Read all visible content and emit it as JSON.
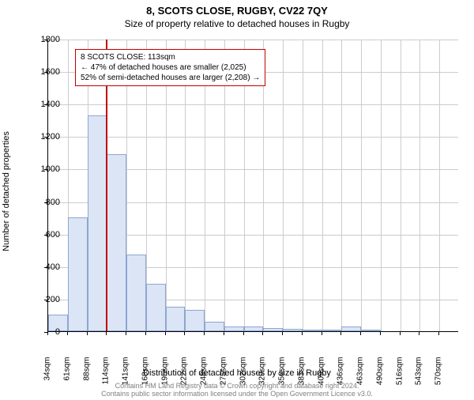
{
  "chart": {
    "type": "histogram",
    "title_main": "8, SCOTS CLOSE, RUGBY, CV22 7QY",
    "title_sub": "Size of property relative to detached houses in Rugby",
    "y_axis_label": "Number of detached properties",
    "x_axis_label": "Distribution of detached houses by size in Rugby",
    "ylim": [
      0,
      1800
    ],
    "ytick_step": 200,
    "yticks": [
      0,
      200,
      400,
      600,
      800,
      1000,
      1200,
      1400,
      1600,
      1800
    ],
    "x_tick_labels": [
      "34sqm",
      "61sqm",
      "88sqm",
      "114sqm",
      "141sqm",
      "168sqm",
      "195sqm",
      "222sqm",
      "248sqm",
      "275sqm",
      "302sqm",
      "329sqm",
      "356sqm",
      "383sqm",
      "409sqm",
      "436sqm",
      "463sqm",
      "490sqm",
      "516sqm",
      "543sqm",
      "570sqm"
    ],
    "bars": [
      100,
      700,
      1330,
      1090,
      470,
      290,
      150,
      130,
      60,
      30,
      30,
      20,
      15,
      10,
      5,
      30,
      5,
      0,
      0,
      0
    ],
    "bar_fill": "#dbe5f6",
    "bar_stroke": "#8ea6d0",
    "grid_color": "#ccccd0",
    "background_color": "#ffffff",
    "ref_line_value_sqm": 113,
    "ref_line_color": "#c00000",
    "annotation": {
      "line1": "8 SCOTS CLOSE: 113sqm",
      "line2": "← 47% of detached houses are smaller (2,025)",
      "line3": "52% of semi-detached houses are larger (2,208) →",
      "border_color": "#c00000"
    },
    "title_fontsize": 13,
    "subtitle_fontsize": 12,
    "axis_label_fontsize": 11,
    "tick_fontsize": 11
  },
  "footer": {
    "line1": "Contains HM Land Registry data © Crown copyright and database right 2024.",
    "line2": "Contains public sector information licensed under the Open Government Licence v3.0."
  }
}
